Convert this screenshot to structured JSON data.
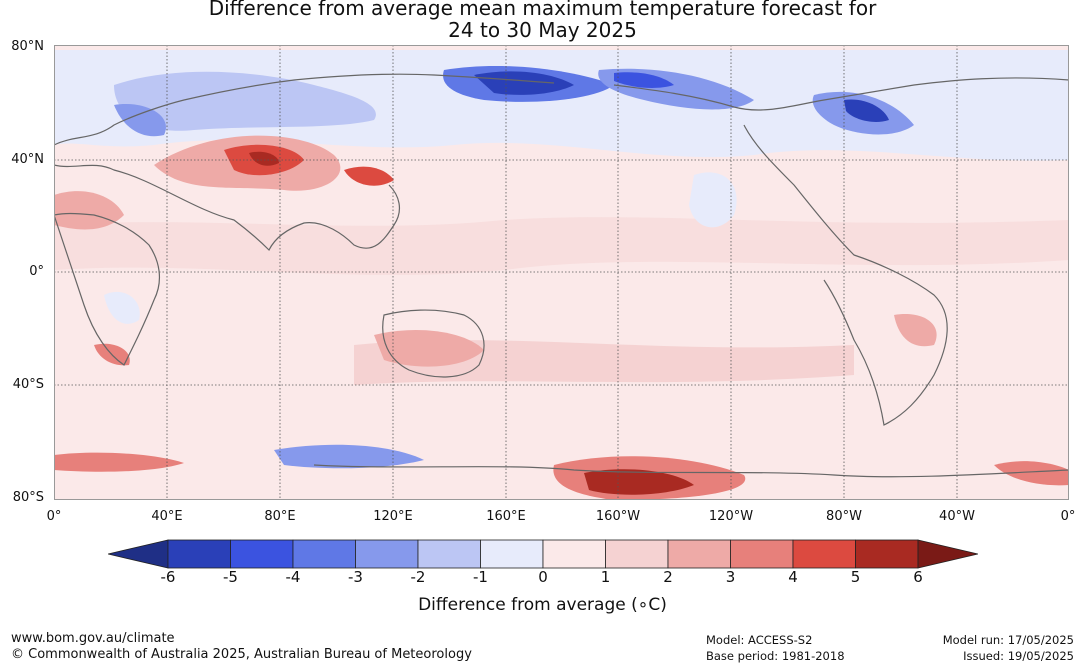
{
  "title": {
    "line1": "Difference from average mean maximum temperature forecast for",
    "line2": "24 to 30 May 2025"
  },
  "map": {
    "lat_labels": [
      "80°N",
      "40°N",
      "0°",
      "40°S",
      "80°S"
    ],
    "lon_labels": [
      "0°",
      "40°E",
      "80°E",
      "120°E",
      "160°E",
      "160°W",
      "120°W",
      "80°W",
      "40°W",
      "0°"
    ]
  },
  "colorbar": {
    "ticks": [
      "-6",
      "-5",
      "-4",
      "-3",
      "-2",
      "-1",
      "0",
      "1",
      "2",
      "3",
      "4",
      "5",
      "6"
    ],
    "colors": [
      "#1f2f86",
      "#2a40b8",
      "#3b53e0",
      "#5f78e6",
      "#8699ec",
      "#bcc6f4",
      "#e7ebfb",
      "#fbe9e9",
      "#f5d2d2",
      "#eeaaa7",
      "#e7807b",
      "#dc4a40",
      "#a92a22",
      "#7a1a16"
    ],
    "label": "Difference from average (∘C)"
  },
  "footer": {
    "website": "www.bom.gov.au/climate",
    "copyright": "© Commonwealth of Australia 2025, Australian Bureau of Meteorology",
    "model": "Model: ACCESS-S2",
    "base_period": "Base period: 1981-2018",
    "model_run": "Model run: 17/05/2025",
    "issued": "Issued: 19/05/2025"
  }
}
